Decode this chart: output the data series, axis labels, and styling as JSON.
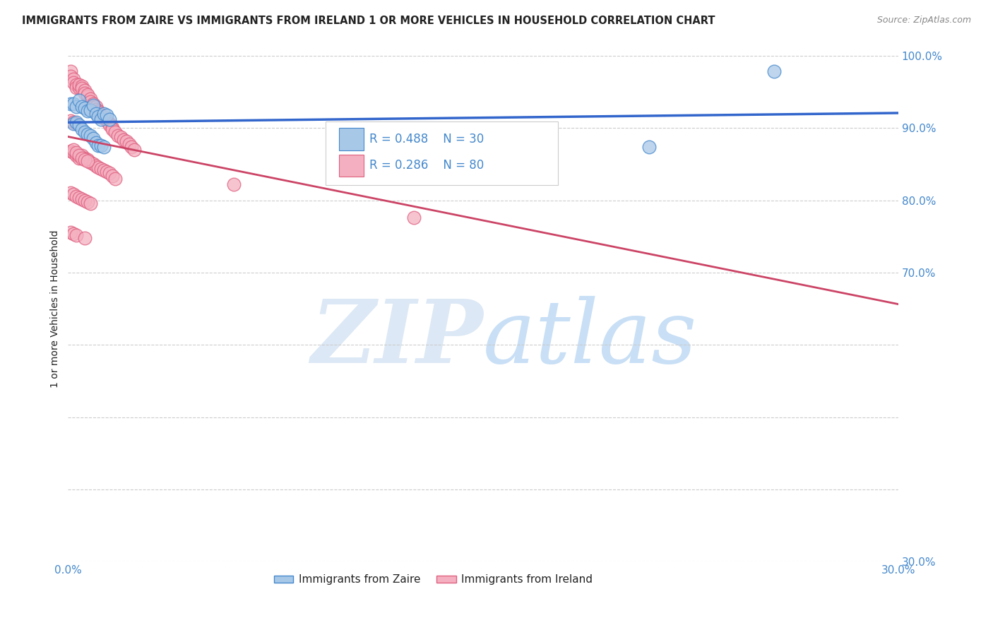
{
  "title": "IMMIGRANTS FROM ZAIRE VS IMMIGRANTS FROM IRELAND 1 OR MORE VEHICLES IN HOUSEHOLD CORRELATION CHART",
  "source": "Source: ZipAtlas.com",
  "ylabel": "1 or more Vehicles in Household",
  "xlim": [
    0.0,
    0.3
  ],
  "ylim": [
    0.3,
    1.0
  ],
  "xtick_pos": [
    0.0,
    0.05,
    0.1,
    0.15,
    0.2,
    0.25,
    0.3
  ],
  "xticklabels": [
    "0.0%",
    "",
    "",
    "",
    "",
    "",
    "30.0%"
  ],
  "ytick_pos": [
    0.3,
    0.4,
    0.5,
    0.6,
    0.7,
    0.8,
    0.9,
    1.0
  ],
  "yticklabels": [
    "30.0%",
    "",
    "",
    "",
    "70.0%",
    "80.0%",
    "90.0%",
    "100.0%"
  ],
  "legend_zaire": "Immigrants from Zaire",
  "legend_ireland": "Immigrants from Ireland",
  "R_zaire": 0.488,
  "N_zaire": 30,
  "R_ireland": 0.286,
  "N_ireland": 80,
  "color_zaire_fill": "#a8c8e8",
  "color_ireland_fill": "#f4b0c0",
  "color_zaire_edge": "#4488cc",
  "color_ireland_edge": "#e06080",
  "color_zaire_line": "#3366cc",
  "color_ireland_line": "#cc4466",
  "color_text_blue": "#4488cc",
  "color_text_dark": "#222222",
  "watermark_color": "#dce8f5",
  "background_color": "#ffffff",
  "zaire_x": [
    0.001,
    0.002,
    0.003,
    0.004,
    0.005,
    0.006,
    0.007,
    0.008,
    0.009,
    0.01,
    0.011,
    0.012,
    0.013,
    0.014,
    0.015,
    0.002,
    0.003,
    0.004,
    0.005,
    0.006,
    0.007,
    0.008,
    0.009,
    0.01,
    0.011,
    0.012,
    0.013,
    0.105,
    0.21,
    0.255
  ],
  "zaire_y": [
    0.934,
    0.934,
    0.93,
    0.938,
    0.93,
    0.928,
    0.924,
    0.925,
    0.932,
    0.92,
    0.916,
    0.912,
    0.92,
    0.918,
    0.912,
    0.906,
    0.908,
    0.904,
    0.898,
    0.894,
    0.892,
    0.89,
    0.886,
    0.88,
    0.876,
    0.876,
    0.874,
    0.86,
    0.874,
    0.978
  ],
  "ireland_x": [
    0.001,
    0.001,
    0.002,
    0.002,
    0.003,
    0.003,
    0.004,
    0.004,
    0.005,
    0.005,
    0.006,
    0.006,
    0.007,
    0.007,
    0.008,
    0.008,
    0.009,
    0.009,
    0.01,
    0.01,
    0.011,
    0.011,
    0.012,
    0.012,
    0.013,
    0.013,
    0.014,
    0.014,
    0.015,
    0.015,
    0.016,
    0.016,
    0.017,
    0.018,
    0.019,
    0.02,
    0.021,
    0.022,
    0.023,
    0.024,
    0.001,
    0.002,
    0.003,
    0.004,
    0.005,
    0.006,
    0.007,
    0.008,
    0.009,
    0.01,
    0.011,
    0.012,
    0.013,
    0.014,
    0.015,
    0.016,
    0.017,
    0.002,
    0.003,
    0.004,
    0.005,
    0.006,
    0.007,
    0.001,
    0.002,
    0.003,
    0.06,
    0.001,
    0.002,
    0.003,
    0.004,
    0.005,
    0.006,
    0.007,
    0.008,
    0.001,
    0.002,
    0.003,
    0.006,
    0.125
  ],
  "ireland_y": [
    0.978,
    0.972,
    0.968,
    0.963,
    0.96,
    0.956,
    0.956,
    0.96,
    0.958,
    0.955,
    0.952,
    0.948,
    0.944,
    0.946,
    0.94,
    0.936,
    0.934,
    0.93,
    0.93,
    0.926,
    0.924,
    0.922,
    0.918,
    0.916,
    0.914,
    0.916,
    0.91,
    0.912,
    0.906,
    0.904,
    0.9,
    0.898,
    0.894,
    0.89,
    0.888,
    0.884,
    0.882,
    0.878,
    0.874,
    0.87,
    0.868,
    0.866,
    0.862,
    0.858,
    0.862,
    0.858,
    0.856,
    0.852,
    0.85,
    0.848,
    0.846,
    0.844,
    0.842,
    0.84,
    0.838,
    0.834,
    0.83,
    0.87,
    0.866,
    0.862,
    0.858,
    0.856,
    0.854,
    0.91,
    0.908,
    0.906,
    0.822,
    0.81,
    0.808,
    0.806,
    0.804,
    0.802,
    0.8,
    0.798,
    0.796,
    0.756,
    0.754,
    0.752,
    0.748,
    0.776
  ]
}
